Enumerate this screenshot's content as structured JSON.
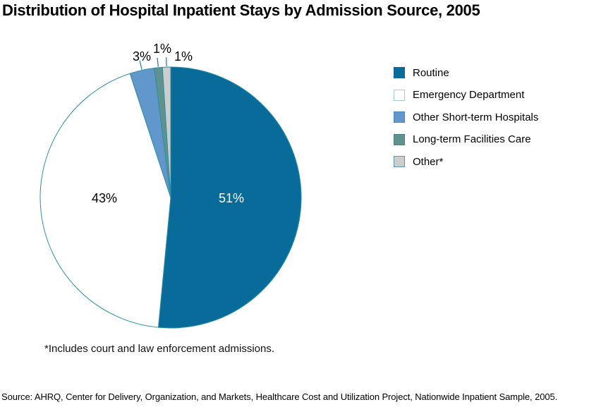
{
  "title": "Distribution of Hospital Inpatient Stays by Admission Source, 2005",
  "chart_data": {
    "type": "pie",
    "title": "Distribution of Hospital Inpatient Stays by Admission Source, 2005",
    "start_angle_deg": 0,
    "direction": "clockwise",
    "legend_position": "right",
    "outline_color": "#2f8fa4",
    "leader_line_color": "#1b7ba0",
    "slices": [
      {
        "label": "Routine",
        "value": 51,
        "display": "51%",
        "color": "#086b9a",
        "swatch_border": "#086b9a",
        "label_color": "#ffffff",
        "label_placement": "inside"
      },
      {
        "label": "Emergency Department",
        "value": 43,
        "display": "43%",
        "color": "#ffffff",
        "swatch_border": "#a3ced2",
        "label_color": "#000000",
        "label_placement": "inside"
      },
      {
        "label": "Other Short-term Hospitals",
        "value": 3,
        "display": "3%",
        "color": "#6297cb",
        "swatch_border": "#4b86b8",
        "label_color": "#000000",
        "label_placement": "outside"
      },
      {
        "label": "Long-term Facilities Care",
        "value": 1,
        "display": "1%",
        "color": "#5f918f",
        "swatch_border": "#4d7f7f",
        "label_color": "#000000",
        "label_placement": "outside"
      },
      {
        "label": "Other*",
        "value": 1,
        "display": "1%",
        "color": "#cbcecc",
        "swatch_border": "#5796b6",
        "label_color": "#000000",
        "label_placement": "outside"
      }
    ]
  },
  "footnote": "*Includes court and law enforcement admissions.",
  "source": "Source:  AHRQ, Center for Delivery, Organization, and Markets, Healthcare Cost and Utilization Project, Nationwide Inpatient Sample, 2005."
}
